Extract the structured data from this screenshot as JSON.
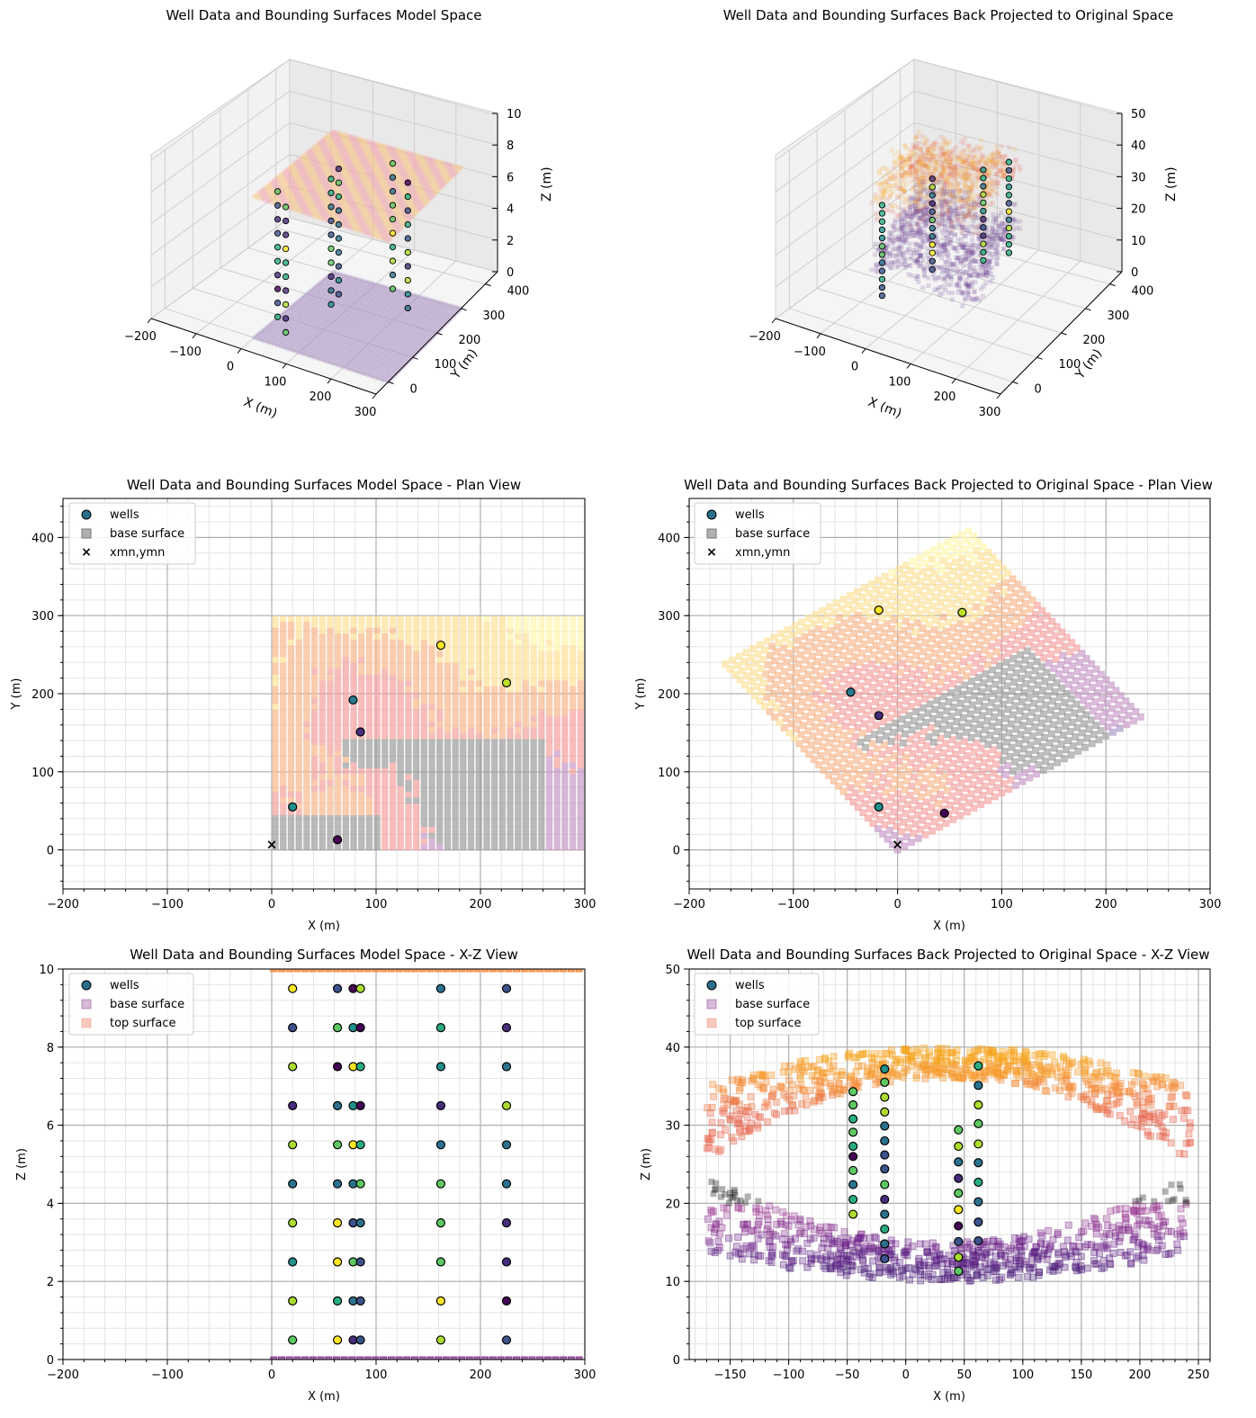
{
  "chart_data": [
    {
      "type": "scatter3d",
      "title": "Well Data and Bounding Surfaces Model Space",
      "xlabel": "X (m)",
      "ylabel": "Y (m)",
      "zlabel": "Z (m)",
      "xticks": [
        "−200",
        "−100",
        "0",
        "100",
        "200",
        "300"
      ],
      "yticks": [
        "0",
        "100",
        "200",
        "300",
        "400"
      ],
      "zticks": [
        "0",
        "2",
        "4",
        "6",
        "8",
        "10"
      ],
      "base_surface_z": 0,
      "top_surface_z": 10,
      "wells_xy": [
        [
          20,
          55
        ],
        [
          63,
          13
        ],
        [
          78,
          192
        ],
        [
          85,
          151
        ],
        [
          162,
          262
        ],
        [
          225,
          214
        ]
      ]
    },
    {
      "type": "scatter3d",
      "title": "Well Data and Bounding Surfaces Back Projected to Original Space",
      "xlabel": "X (m)",
      "ylabel": "Y (m)",
      "zlabel": "Z (m)",
      "xticks": [
        "−200",
        "−100",
        "0",
        "100",
        "200",
        "300"
      ],
      "yticks": [
        "0",
        "100",
        "200",
        "300",
        "400"
      ],
      "zticks": [
        "0",
        "10",
        "20",
        "30",
        "40",
        "50"
      ],
      "base_surface_z_range": [
        10,
        20
      ],
      "top_surface_z_range": [
        30,
        40
      ]
    },
    {
      "type": "scatter",
      "title": "Well Data and Bounding Surfaces Model Space - Plan View",
      "xlabel": "X (m)",
      "ylabel": "Y (m)",
      "xlim": [
        -200,
        300
      ],
      "ylim": [
        -50,
        450
      ],
      "xticks": [
        "−200",
        "−100",
        "0",
        "100",
        "200",
        "300"
      ],
      "yticks": [
        "0",
        "100",
        "200",
        "300",
        "400"
      ],
      "legend": [
        "wells",
        "base surface",
        "xmn,ymn"
      ],
      "surface_extent": {
        "x": [
          0,
          300
        ],
        "y": [
          0,
          300
        ]
      },
      "wells": [
        {
          "x": 20,
          "y": 55,
          "color": "#21918c"
        },
        {
          "x": 63,
          "y": 13,
          "color": "#440154"
        },
        {
          "x": 78,
          "y": 192,
          "color": "#2a788e"
        },
        {
          "x": 85,
          "y": 151,
          "color": "#472d7b"
        },
        {
          "x": 162,
          "y": 262,
          "color": "#fde725"
        },
        {
          "x": 225,
          "y": 214,
          "color": "#bddf26"
        }
      ],
      "origin_marker": {
        "x": 0,
        "y": 7
      }
    },
    {
      "type": "scatter",
      "title": "Well Data and Bounding Surfaces Back Projected to Original Space - Plan View",
      "xlabel": "X (m)",
      "ylabel": "Y (m)",
      "xlim": [
        -200,
        300
      ],
      "ylim": [
        -50,
        450
      ],
      "xticks": [
        "−200",
        "−100",
        "0",
        "100",
        "200",
        "300"
      ],
      "yticks": [
        "0",
        "100",
        "200",
        "300",
        "400"
      ],
      "legend": [
        "wells",
        "base surface",
        "xmn,ymn"
      ],
      "surface_corners": [
        [
          0,
          0
        ],
        [
          240,
          175
        ],
        [
          70,
          415
        ],
        [
          -170,
          245
        ]
      ],
      "wells": [
        {
          "x": -18,
          "y": 55,
          "color": "#21918c"
        },
        {
          "x": 45,
          "y": 47,
          "color": "#440154"
        },
        {
          "x": -45,
          "y": 202,
          "color": "#2a788e"
        },
        {
          "x": -18,
          "y": 172,
          "color": "#472d7b"
        },
        {
          "x": -18,
          "y": 307,
          "color": "#fde725"
        },
        {
          "x": 62,
          "y": 304,
          "color": "#bddf26"
        }
      ],
      "origin_marker": {
        "x": 0,
        "y": 7
      }
    },
    {
      "type": "scatter",
      "title": "Well Data and Bounding Surfaces Model Space - X-Z View",
      "xlabel": "X (m)",
      "ylabel": "Z (m)",
      "xlim": [
        -200,
        300
      ],
      "ylim": [
        0,
        10
      ],
      "xticks": [
        "−200",
        "−100",
        "0",
        "100",
        "200",
        "300"
      ],
      "yticks": [
        "0",
        "2",
        "4",
        "6",
        "8",
        "10"
      ],
      "legend": [
        "wells",
        "base surface",
        "top surface"
      ],
      "well_x": [
        20,
        63,
        78,
        85,
        162,
        225
      ],
      "sample_z": [
        0.5,
        1.5,
        2.5,
        3.5,
        4.5,
        5.5,
        6.5,
        7.5,
        8.5,
        9.5
      ],
      "base_surface_z": 0,
      "top_surface_z": 10
    },
    {
      "type": "scatter",
      "title": "Well Data and Bounding Surfaces Back Projected to Original Space  - X-Z View",
      "xlabel": "X (m)",
      "ylabel": "Z (m)",
      "xlim": [
        -185,
        260
      ],
      "ylim": [
        0,
        50
      ],
      "xticks": [
        "−150",
        "−100",
        "−50",
        "0",
        "50",
        "100",
        "150",
        "200",
        "250"
      ],
      "yticks": [
        "0",
        "10",
        "20",
        "30",
        "40",
        "50"
      ],
      "legend": [
        "wells",
        "base surface",
        "top surface"
      ],
      "wells": [
        {
          "x": -45,
          "z": [
            18.6,
            20.5,
            22.4,
            24.2,
            26.0,
            27.3,
            29.1,
            30.8,
            32.6,
            34.3
          ]
        },
        {
          "x": -18,
          "z": [
            12.9,
            14.8,
            16.7,
            18.6,
            20.5,
            22.4,
            24.4,
            26.2,
            28.0,
            29.9,
            31.7,
            33.6,
            35.5,
            37.2
          ]
        },
        {
          "x": 45,
          "z": [
            11.3,
            13.1,
            15.1,
            17.1,
            19.2,
            21.3,
            23.2,
            25.3,
            27.3,
            29.4
          ]
        },
        {
          "x": 62,
          "z": [
            15.2,
            17.6,
            20.2,
            22.7,
            25.2,
            27.6,
            30.2,
            32.6,
            35.1,
            37.6
          ]
        }
      ],
      "base_surface_z_range": [
        10,
        20
      ],
      "top_surface_z_range": [
        30,
        40
      ]
    }
  ],
  "colors": {
    "top_surface": "#f7941d",
    "top_surface_light": "#f8c271",
    "base_surface": "#8b3a8f",
    "base_surface_dark": "#4b1a6e",
    "grid": "#b0b0b0",
    "minor_grid": "#e6e6e6"
  }
}
